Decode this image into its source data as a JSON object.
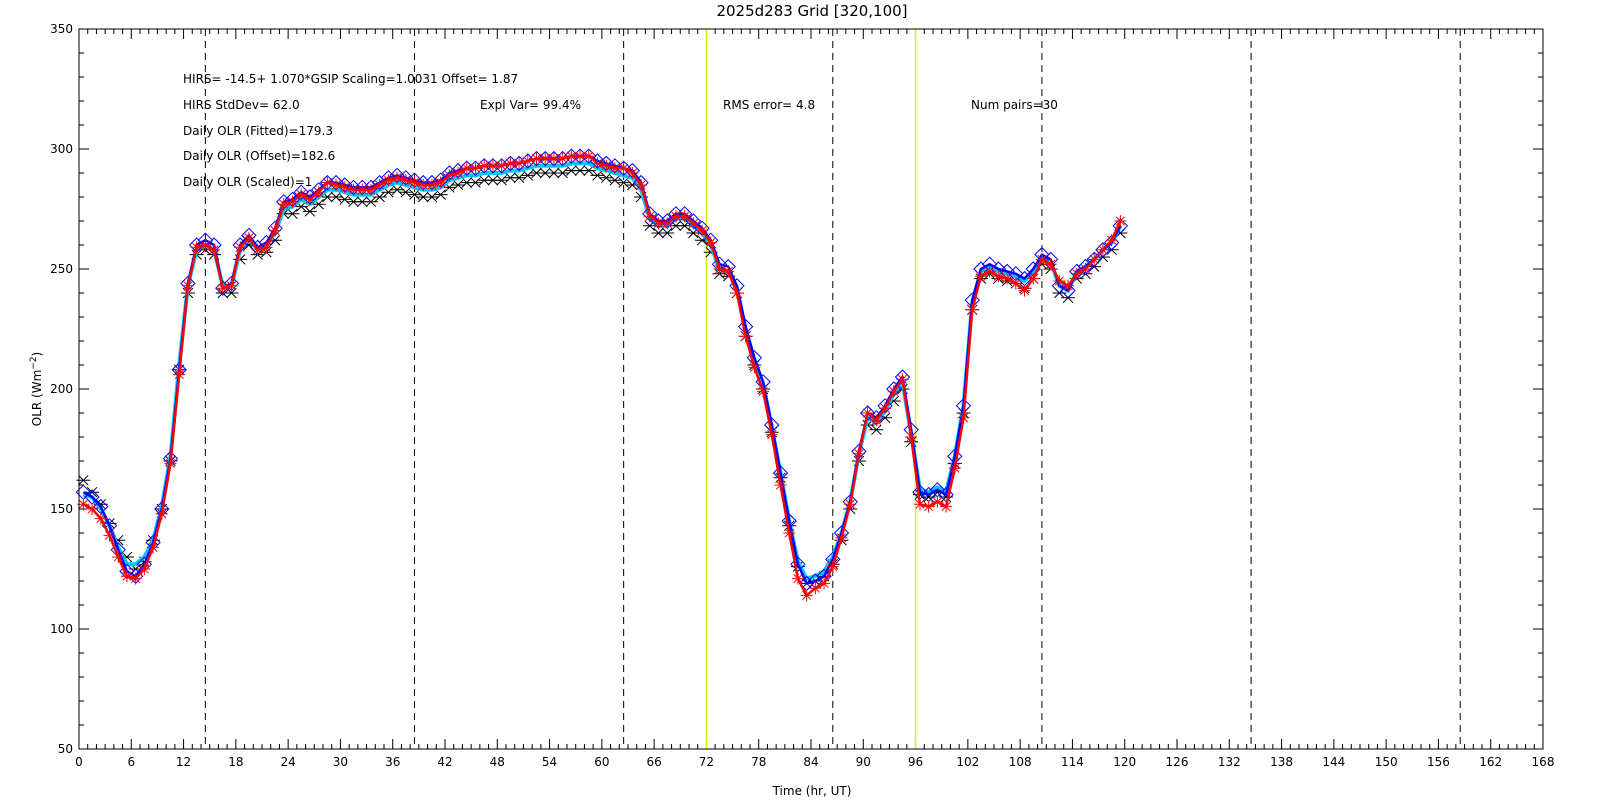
{
  "chart_data": {
    "type": "line",
    "title": "2025d283 Grid [320,100]",
    "xlabel": "Time (hr, UT)",
    "ylabel_main": "OLR (Wm",
    "ylabel_sup": "−2",
    "ylabel_close": ")",
    "xlim": [
      0,
      168
    ],
    "ylim": [
      50,
      350
    ],
    "x_ticks": [
      0,
      6,
      12,
      18,
      24,
      30,
      36,
      42,
      48,
      54,
      60,
      66,
      72,
      78,
      84,
      90,
      96,
      102,
      108,
      114,
      120,
      126,
      132,
      138,
      144,
      150,
      156,
      162,
      168
    ],
    "y_ticks": [
      50,
      100,
      150,
      200,
      250,
      300,
      350
    ],
    "dashed_vlines": [
      14.5,
      38.5,
      62.5,
      86.5,
      110.5,
      134.5,
      158.5
    ],
    "green_vlines": [
      72,
      96
    ],
    "colors": {
      "ref": "#000000",
      "fit": "#00c8ff",
      "offset": "#0000ff",
      "scaled": "#ff0000",
      "day_marker": "#d0ff00"
    },
    "stats": {
      "line1": "HIRS=  -14.5+  1.070*GSIP  Scaling=1.0031  Offset=  1.87",
      "stddev": "HIRS StdDev= 62.0",
      "expl_var": "Expl Var= 99.4%",
      "rms": "RMS error=  4.8",
      "num_pairs": "Num pairs=30",
      "fitted": "Daily OLR (Fitted)=179.3",
      "offset": "Daily OLR (Offset)=182.6",
      "scaled": "Daily OLR (Scaled)=1"
    },
    "x": [
      0.5,
      1.5,
      2.5,
      3.5,
      4.5,
      5.5,
      6.5,
      7.5,
      8.5,
      9.5,
      10.5,
      11.5,
      12.5,
      13.5,
      14.5,
      15.5,
      16.5,
      17.5,
      18.5,
      19.5,
      20.5,
      21.5,
      22.5,
      23.5,
      24.5,
      25.5,
      26.5,
      27.5,
      28.5,
      29.5,
      30.5,
      31.5,
      32.5,
      33.5,
      34.5,
      35.5,
      36.5,
      37.5,
      38.5,
      39.5,
      40.5,
      41.5,
      42.5,
      43.5,
      44.5,
      45.5,
      46.5,
      47.5,
      48.5,
      49.5,
      50.5,
      51.5,
      52.5,
      53.5,
      54.5,
      55.5,
      56.5,
      57.5,
      58.5,
      59.5,
      60.5,
      61.5,
      62.5,
      63.5,
      64.5,
      65.5,
      66.5,
      67.5,
      68.5,
      69.5,
      70.5,
      71.5,
      72.5,
      73.5,
      74.5,
      75.5,
      76.5,
      77.5,
      78.5,
      79.5,
      80.5,
      81.5,
      82.5,
      83.5,
      84.5,
      85.5,
      86.5,
      87.5,
      88.5,
      89.5,
      90.5,
      91.5,
      92.5,
      93.5,
      94.5,
      95.5,
      96.5,
      97.5,
      98.5,
      99.5,
      100.5,
      101.5,
      102.5,
      103.5,
      104.5,
      105.5,
      106.5,
      107.5,
      108.5,
      109.5,
      110.5,
      111.5,
      112.5,
      113.5,
      114.5,
      115.5,
      116.5,
      117.5,
      118.5,
      119.5
    ],
    "series": [
      {
        "role": "ref",
        "values": [
          162,
          157,
          152,
          144,
          137,
          130,
          125,
          128,
          137,
          150,
          170,
          208,
          240,
          256,
          258,
          256,
          240,
          240,
          254,
          260,
          256,
          257,
          262,
          273,
          273,
          276,
          274,
          277,
          280,
          280,
          279,
          278,
          278,
          278,
          280,
          282,
          283,
          282,
          281,
          280,
          280,
          281,
          284,
          285,
          286,
          286,
          287,
          287,
          287,
          288,
          288,
          289,
          290,
          290,
          290,
          290,
          291,
          291,
          291,
          289,
          288,
          287,
          286,
          285,
          280,
          268,
          265,
          265,
          268,
          268,
          265,
          262,
          257,
          248,
          247,
          240,
          222,
          210,
          200,
          182,
          163,
          143,
          126,
          119,
          120,
          122,
          127,
          137,
          150,
          170,
          185,
          183,
          188,
          195,
          200,
          178,
          156,
          155,
          157,
          155,
          169,
          190,
          233,
          246,
          248,
          246,
          245,
          244,
          242,
          246,
          252,
          250,
          240,
          238,
          246,
          248,
          251,
          255,
          258,
          265
        ]
      },
      {
        "role": "fit",
        "values": [
          156,
          155,
          150,
          143,
          134,
          127,
          127,
          130,
          137,
          151,
          172,
          210,
          243,
          258,
          260,
          258,
          243,
          243,
          258,
          263,
          258,
          260,
          265,
          275,
          276,
          279,
          277,
          280,
          283,
          283,
          282,
          281,
          281,
          281,
          283,
          285,
          286,
          285,
          284,
          283,
          283,
          284,
          287,
          288,
          289,
          289,
          290,
          290,
          290,
          291,
          291,
          292,
          293,
          293,
          293,
          293,
          294,
          294,
          294,
          292,
          291,
          290,
          289,
          288,
          283,
          271,
          268,
          268,
          271,
          271,
          268,
          265,
          260,
          250,
          249,
          242,
          225,
          212,
          202,
          184,
          165,
          145,
          128,
          121,
          122,
          124,
          130,
          140,
          153,
          173,
          188,
          186,
          191,
          198,
          203,
          181,
          158,
          157,
          159,
          157,
          172,
          193,
          236,
          249,
          251,
          249,
          248,
          247,
          245,
          249,
          255,
          253,
          243,
          241,
          249,
          251,
          254,
          258,
          261,
          268
        ]
      },
      {
        "role": "offset",
        "values": [
          157,
          155,
          151,
          143,
          133,
          124,
          122,
          127,
          136,
          150,
          171,
          208,
          244,
          260,
          262,
          260,
          242,
          244,
          260,
          264,
          259,
          261,
          267,
          278,
          279,
          282,
          280,
          283,
          286,
          286,
          285,
          284,
          284,
          284,
          286,
          288,
          289,
          288,
          287,
          286,
          286,
          287,
          290,
          291,
          292,
          292,
          293,
          293,
          293,
          294,
          294,
          295,
          296,
          296,
          296,
          296,
          297,
          297,
          297,
          295,
          294,
          293,
          292,
          291,
          286,
          273,
          270,
          270,
          273,
          273,
          270,
          267,
          262,
          252,
          251,
          243,
          226,
          213,
          203,
          185,
          165,
          145,
          127,
          119,
          120,
          122,
          129,
          140,
          153,
          174,
          190,
          188,
          193,
          200,
          205,
          183,
          157,
          156,
          158,
          156,
          172,
          193,
          237,
          250,
          252,
          250,
          249,
          248,
          246,
          250,
          256,
          254,
          243,
          241,
          249,
          251,
          254,
          258,
          261,
          268
        ]
      },
      {
        "role": "scaled",
        "values": [
          152,
          150,
          146,
          139,
          130,
          122,
          121,
          125,
          134,
          148,
          169,
          206,
          243,
          259,
          260,
          258,
          242,
          243,
          259,
          263,
          258,
          259,
          266,
          277,
          278,
          281,
          279,
          282,
          286,
          285,
          284,
          283,
          283,
          283,
          285,
          287,
          288,
          287,
          286,
          285,
          285,
          286,
          289,
          290,
          292,
          292,
          293,
          293,
          293,
          294,
          294,
          295,
          296,
          296,
          296,
          296,
          297,
          297,
          297,
          294,
          293,
          292,
          292,
          290,
          285,
          272,
          269,
          269,
          272,
          272,
          269,
          266,
          261,
          250,
          249,
          240,
          222,
          209,
          199,
          181,
          160,
          140,
          121,
          114,
          117,
          119,
          126,
          138,
          152,
          173,
          190,
          187,
          192,
          199,
          204,
          180,
          152,
          151,
          153,
          151,
          167,
          188,
          233,
          247,
          249,
          247,
          246,
          244,
          241,
          246,
          254,
          252,
          245,
          243,
          248,
          250,
          254,
          258,
          262,
          270
        ]
      }
    ]
  }
}
